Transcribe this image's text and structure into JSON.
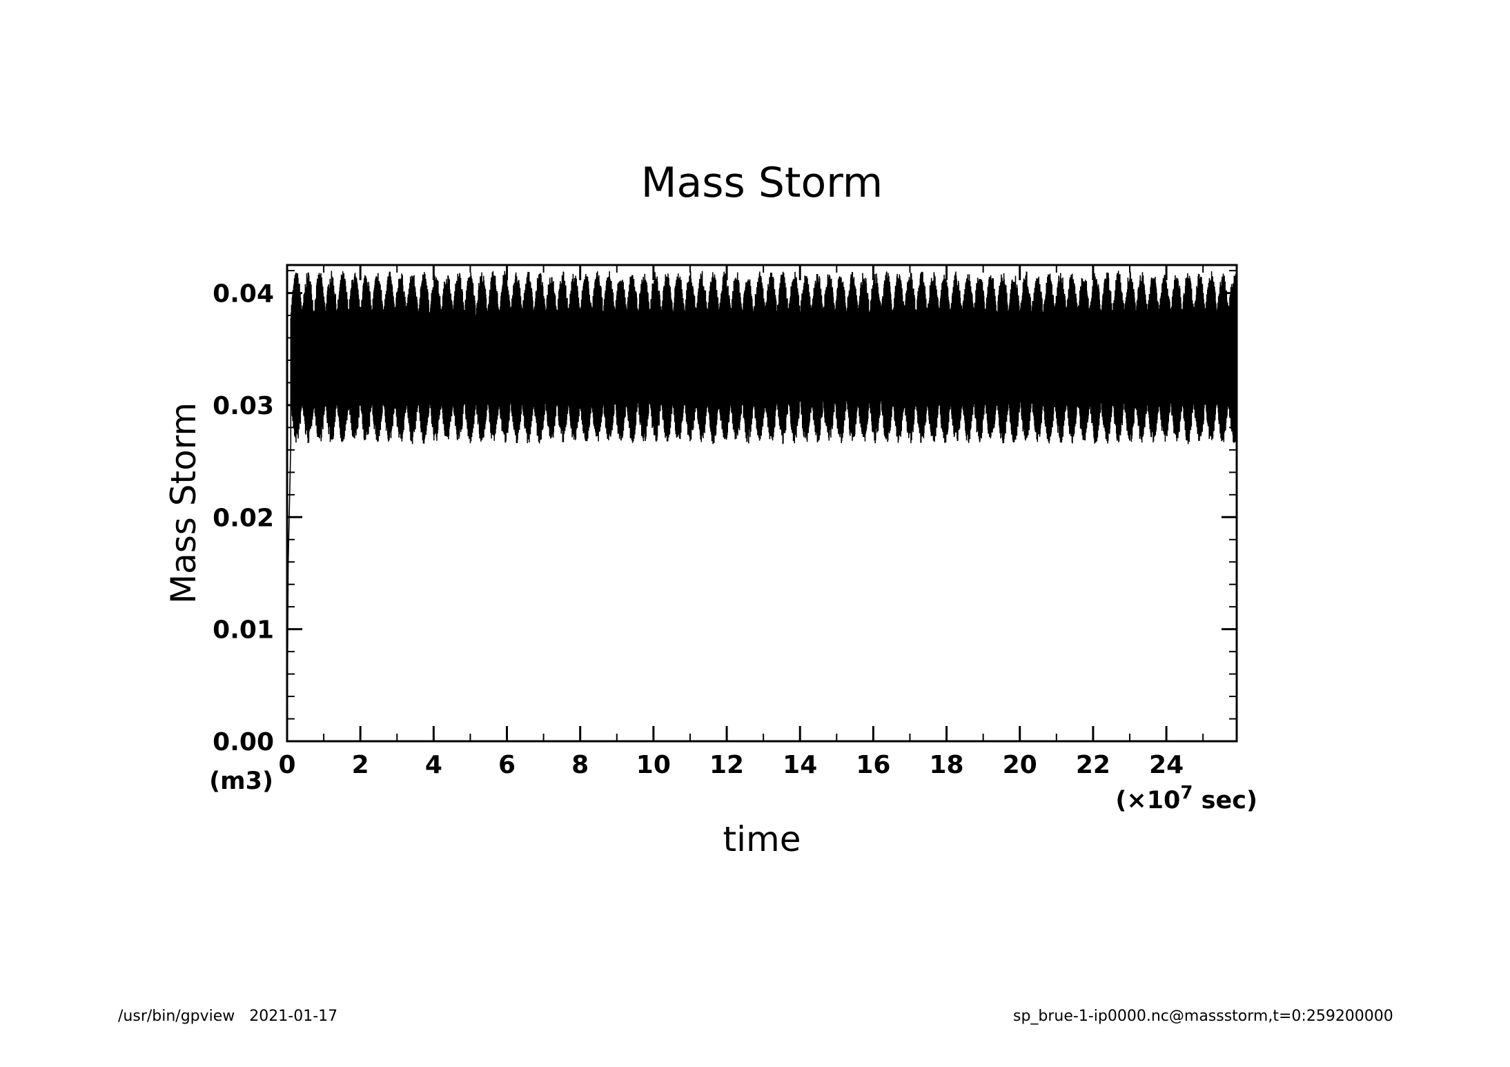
{
  "chart_data": {
    "type": "line",
    "title": "Mass Storm",
    "xlabel": "time",
    "ylabel": "Mass Storm",
    "x_unit_label": "(×10",
    "x_unit_exponent": "7",
    "x_unit_suffix": " sec)",
    "y_unit_label": "(m3)",
    "xlim": [
      0,
      25.92
    ],
    "ylim": [
      0,
      0.0425
    ],
    "x_ticks": [
      "0",
      "2",
      "4",
      "6",
      "8",
      "10",
      "12",
      "14",
      "16",
      "18",
      "20",
      "22",
      "24"
    ],
    "y_ticks": [
      "0.00",
      "0.01",
      "0.02",
      "0.03",
      "0.04"
    ],
    "grid": false,
    "series": [
      {
        "name": "massstorm",
        "color": "#000000",
        "description_values": {
          "initial": 0.0,
          "spinup_end_x": 0.1,
          "oscillation_min": 0.0265,
          "oscillation_max": 0.042,
          "period_x": 0.316
        }
      }
    ]
  },
  "footer": {
    "left": "/usr/bin/gpview   2021-01-17",
    "right": "sp_brue-1-ip0000.nc@massstorm,t=0:259200000"
  },
  "colors": {
    "line": "#000000",
    "background": "#ffffff"
  }
}
